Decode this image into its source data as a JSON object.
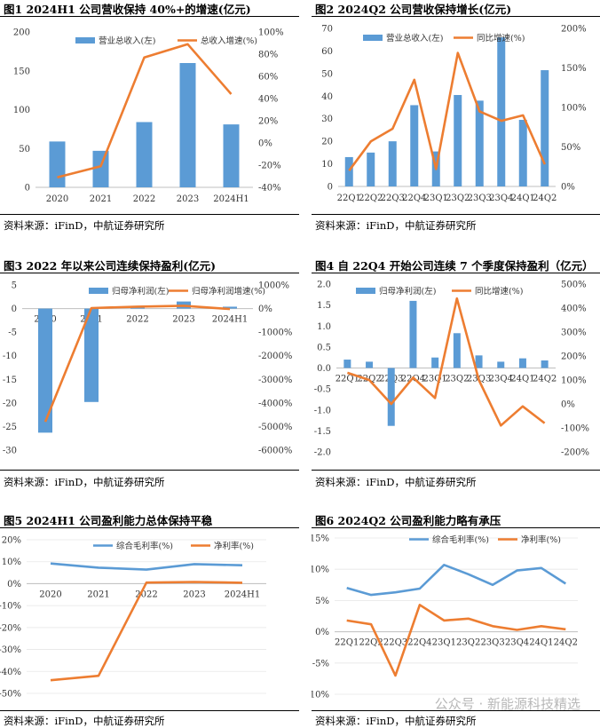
{
  "source_label": "资料来源：",
  "source_text": "iFinD，中航证券研究所",
  "watermark": "公众号 · 新能源科技精选",
  "colors": {
    "bar": "#5b9bd5",
    "line": "#ed7d31",
    "line2": "#5b9bd5"
  },
  "chart_data": [
    {
      "id": "fig1",
      "type": "bar+line",
      "title": "图1  2024H1 公司营收保持 40%+的增速(亿元)",
      "categories": [
        "2020",
        "2021",
        "2022",
        "2023",
        "2024H1"
      ],
      "series": [
        {
          "name": "营业总收入(左)",
          "type": "bar",
          "axis": "left",
          "values": [
            59,
            47,
            84,
            160,
            81
          ]
        },
        {
          "name": "总收入增速(%)",
          "type": "line",
          "axis": "right",
          "values": [
            -31,
            -21,
            77,
            89,
            44
          ]
        }
      ],
      "ylim": [
        0,
        200
      ],
      "yticks": [
        0,
        50,
        100,
        150,
        200
      ],
      "ytick_labels": [
        "0",
        "50",
        "100",
        "150",
        "200"
      ],
      "y2lim": [
        -40,
        100
      ],
      "y2ticks": [
        -40,
        -20,
        0,
        20,
        40,
        60,
        80,
        100
      ],
      "y2tick_labels": [
        "-40%",
        "-20%",
        "0%",
        "20%",
        "40%",
        "60%",
        "80%",
        "100%"
      ]
    },
    {
      "id": "fig2",
      "type": "bar+line",
      "title": "图2  2024Q2 公司营收保持增长(亿元)",
      "categories": [
        "22Q1",
        "22Q2",
        "22Q3",
        "22Q4",
        "23Q1",
        "23Q2",
        "23Q3",
        "23Q4",
        "24Q1",
        "24Q2"
      ],
      "series": [
        {
          "name": "营业总收入(左)",
          "type": "bar",
          "axis": "left",
          "values": [
            13,
            15,
            20,
            36,
            15.5,
            40.5,
            38,
            66,
            29.5,
            51.5
          ]
        },
        {
          "name": "同比增速(%)",
          "type": "line",
          "axis": "right",
          "values": [
            20,
            57,
            73,
            135,
            22,
            169,
            95,
            83,
            90,
            28
          ]
        }
      ],
      "ylim": [
        0,
        70
      ],
      "yticks": [
        0,
        10,
        20,
        30,
        40,
        50,
        60,
        70
      ],
      "ytick_labels": [
        "0",
        "10",
        "20",
        "30",
        "40",
        "50",
        "60",
        "70"
      ],
      "y2lim": [
        0,
        200
      ],
      "y2ticks": [
        0,
        50,
        100,
        150,
        200
      ],
      "y2tick_labels": [
        "0%",
        "50%",
        "100%",
        "150%",
        "200%"
      ]
    },
    {
      "id": "fig3",
      "type": "bar+line",
      "title": "图3  2022 年以来公司连续保持盈利(亿元)",
      "categories": [
        "2020",
        "2021",
        "2022",
        "2023",
        "2024H1"
      ],
      "series": [
        {
          "name": "归母净利润(左)",
          "type": "bar",
          "axis": "left",
          "values": [
            -26.3,
            -19.8,
            0.5,
            1.5,
            0.4
          ]
        },
        {
          "name": "归母净利润增速(%)",
          "type": "line",
          "axis": "right",
          "values": [
            -4800,
            20,
            80,
            120,
            -20
          ]
        }
      ],
      "ylim": [
        -30,
        5
      ],
      "yticks": [
        -30,
        -25,
        -20,
        -15,
        -10,
        -5,
        0,
        5
      ],
      "ytick_labels": [
        "-30",
        "-25",
        "-20",
        "-15",
        "-10",
        "-5",
        "0",
        "5"
      ],
      "y2lim": [
        -6000,
        1000
      ],
      "y2ticks": [
        -6000,
        -5000,
        -4000,
        -3000,
        -2000,
        -1000,
        0,
        1000
      ],
      "y2tick_labels": [
        "-6000%",
        "-5000%",
        "-4000%",
        "-3000%",
        "-2000%",
        "-1000%",
        "0%",
        "1000%"
      ]
    },
    {
      "id": "fig4",
      "type": "bar+line",
      "title": "图4  自 22Q4 开始公司连续 7 个季度保持盈利（亿元）",
      "categories": [
        "22Q1",
        "22Q2",
        "22Q3",
        "22Q4",
        "23Q1",
        "23Q2",
        "23Q3",
        "23Q4",
        "24Q1",
        "24Q2"
      ],
      "series": [
        {
          "name": "归母净利润(左)",
          "type": "bar",
          "axis": "left",
          "values": [
            0.2,
            0.15,
            -1.38,
            1.6,
            0.25,
            0.83,
            0.3,
            0.15,
            0.23,
            0.18
          ]
        },
        {
          "name": "同比增速(%)",
          "type": "line",
          "axis": "right",
          "values": [
            130,
            100,
            0,
            110,
            25,
            440,
            100,
            -90,
            -10,
            -80
          ]
        }
      ],
      "ylim": [
        -2,
        2
      ],
      "yticks": [
        -2,
        -1.5,
        -1,
        -0.5,
        0,
        0.5,
        1,
        1.5,
        2
      ],
      "ytick_labels": [
        "-2.0",
        "-1.5",
        "-1.0",
        "-0.5",
        "0.0",
        "0.5",
        "1.0",
        "1.5",
        "2.0"
      ],
      "y2lim": [
        -200,
        500
      ],
      "y2ticks": [
        -200,
        -100,
        0,
        100,
        200,
        300,
        400,
        500
      ],
      "y2tick_labels": [
        "-200%",
        "-100%",
        "0%",
        "100%",
        "200%",
        "300%",
        "400%",
        "500%"
      ]
    },
    {
      "id": "fig5",
      "type": "line",
      "title": "图5  2024H1 公司盈利能力总体保持平稳",
      "categories": [
        "2020",
        "2021",
        "2022",
        "2023",
        "2024H1"
      ],
      "series": [
        {
          "name": "综合毛利率(%)",
          "type": "line",
          "color": "line2",
          "values": [
            9.2,
            7.3,
            6.4,
            8.9,
            8.4
          ]
        },
        {
          "name": "净利率(%)",
          "type": "line",
          "color": "line",
          "values": [
            -44,
            -42,
            0.5,
            0.8,
            0.4
          ]
        }
      ],
      "ylim": [
        -50,
        20
      ],
      "yticks": [
        -50,
        -40,
        -30,
        -20,
        -10,
        0,
        10,
        20
      ],
      "ytick_labels": [
        "-50%",
        "-40%",
        "-30%",
        "-20%",
        "-10%",
        "0%",
        "10%",
        "20%"
      ]
    },
    {
      "id": "fig6",
      "type": "line",
      "title": "图6  2024Q2 公司盈利能力略有承压",
      "categories": [
        "22Q1",
        "22Q2",
        "22Q3",
        "22Q4",
        "23Q1",
        "23Q2",
        "23Q3",
        "23Q4",
        "24Q1",
        "24Q2"
      ],
      "series": [
        {
          "name": "综合毛利率(%)",
          "type": "line",
          "color": "line2",
          "values": [
            7.0,
            5.9,
            6.3,
            6.9,
            10.7,
            9.2,
            7.5,
            9.8,
            10.2,
            7.7
          ]
        },
        {
          "name": "净利率(%)",
          "type": "line",
          "color": "line",
          "values": [
            1.8,
            1.2,
            -7.0,
            4.3,
            1.8,
            2.1,
            0.9,
            0.3,
            0.9,
            0.4
          ]
        }
      ],
      "ylim": [
        -10,
        15
      ],
      "yticks": [
        -10,
        -5,
        0,
        5,
        10,
        15
      ],
      "ytick_labels": [
        "-10%",
        "-5%",
        "0%",
        "5%",
        "10%",
        "15%"
      ]
    }
  ]
}
